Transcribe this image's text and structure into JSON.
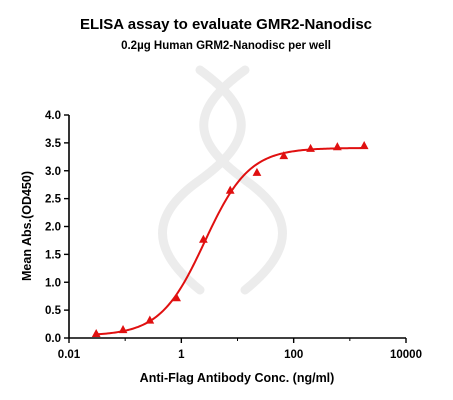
{
  "chart_data": {
    "type": "scatter",
    "title": "ELISA assay to evaluate GMR2-Nanodisc",
    "subtitle": "0.2µg Human GRM2-Nanodisc per well",
    "xlabel": "Anti-Flag Antibody Conc. (ng/ml)",
    "ylabel": "Mean Abs.(OD450)",
    "x_scale": "log",
    "xlim": [
      0.01,
      10000
    ],
    "ylim": [
      0,
      4.0
    ],
    "x_ticks": [
      0.01,
      1,
      100,
      10000
    ],
    "x_tick_labels": [
      "0.01",
      "1",
      "100",
      "10000"
    ],
    "y_ticks": [
      0,
      0.5,
      1.0,
      1.5,
      2.0,
      2.5,
      3.0,
      3.5,
      4.0
    ],
    "y_tick_labels": [
      "0.0",
      "0.5",
      "1.0",
      "1.5",
      "2.0",
      "2.5",
      "3.0",
      "3.5",
      "4.0"
    ],
    "grid": false,
    "legend": "none",
    "color": "#e01010",
    "marker": "triangle",
    "series": [
      {
        "x": [
          0.0305,
          0.0916,
          0.275,
          0.824,
          2.47,
          7.42,
          22.2,
          66.7,
          200,
          600,
          1800
        ],
        "y": [
          0.08,
          0.15,
          0.32,
          0.72,
          1.77,
          2.65,
          2.97,
          3.27,
          3.4,
          3.43,
          3.45
        ]
      }
    ],
    "fit": {
      "type": "4PL",
      "bottom": 0.04,
      "top": 3.41,
      "ec50": 2.6,
      "hill": 1.1
    }
  }
}
